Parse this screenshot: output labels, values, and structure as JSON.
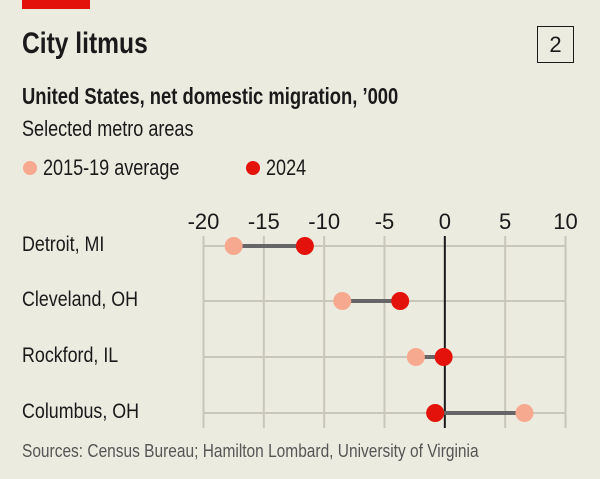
{
  "header": {
    "title": "City litmus",
    "chart_number": "2",
    "subtitle": "United States, net domestic migration, ’000",
    "description": "Selected metro areas"
  },
  "footer": {
    "source": "Sources: Census Bureau; Hamilton Lombard, University of Virginia"
  },
  "colors": {
    "background": "#ecebe0",
    "brand_red": "#e3120b",
    "avg_2015_19": "#f7a98f",
    "y2024": "#e3120b",
    "connector": "#666666",
    "grid": "#c9c7bb",
    "zero_line": "#1a1a1a"
  },
  "chart_data": {
    "type": "dumbbell",
    "title": "City litmus",
    "subtitle": "United States, net domestic migration, ’000",
    "categories": [
      "Detroit, MI",
      "Cleveland, OH",
      "Rockford, IL",
      "Columbus, OH"
    ],
    "series": [
      {
        "name": "2015-19 average",
        "values": [
          -17.5,
          -8.5,
          -2.4,
          6.6
        ]
      },
      {
        "name": "2024",
        "values": [
          -11.6,
          -3.7,
          -0.1,
          -0.8
        ]
      }
    ],
    "xlim": [
      -20,
      10
    ],
    "xticks": [
      "-20",
      "-15",
      "-10",
      "-5",
      "0",
      "5",
      "10"
    ],
    "xtick_values": [
      -20,
      -15,
      -10,
      -5,
      0,
      5,
      10
    ],
    "x_axis_position": "top",
    "grid": true,
    "legend_position": "top-left"
  }
}
